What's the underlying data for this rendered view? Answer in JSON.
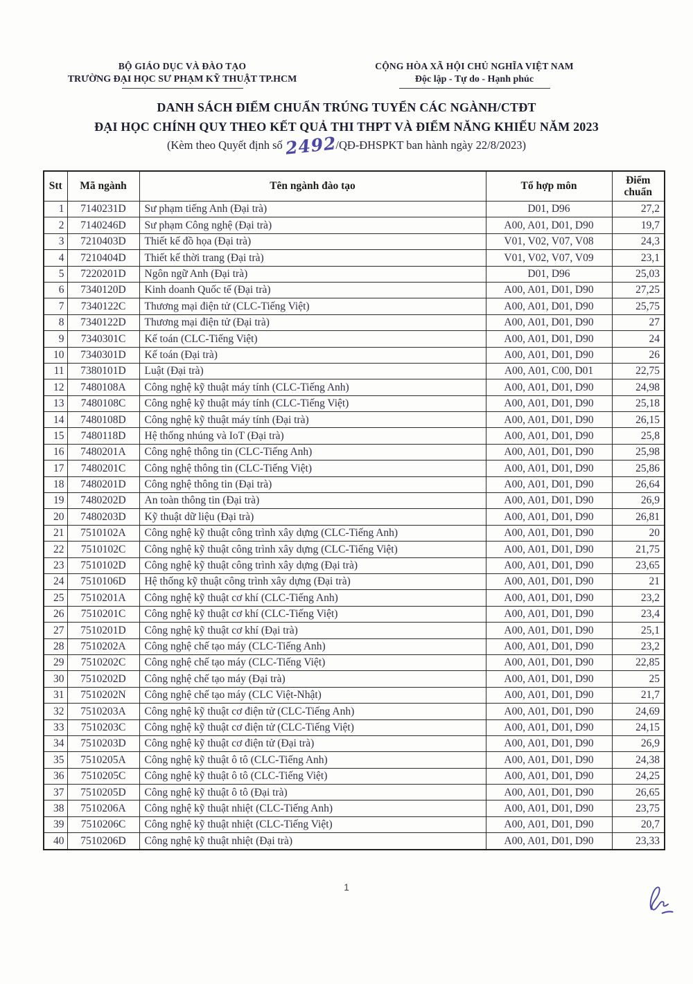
{
  "colors": {
    "handwriting_ink": "#4945ab",
    "body_text": "#2e2e48",
    "heading_text": "#1c1c30"
  },
  "header": {
    "left": {
      "line1": "BỘ GIÁO DỤC VÀ ĐÀO TẠO",
      "line2": "TRƯỜNG ĐẠI HỌC SƯ PHẠM KỸ THUẬT TP.HCM"
    },
    "right": {
      "line1": "CỘNG HÒA XÃ HỘI CHỦ NGHĨA VIỆT NAM",
      "line2": "Độc lập - Tự do - Hạnh phúc"
    }
  },
  "title": {
    "line1": "DANH SÁCH ĐIỂM CHUẨN TRÚNG TUYỂN CÁC NGÀNH/CTĐT",
    "line2": "ĐẠI HỌC CHÍNH QUY THEO KẾT QUẢ THI THPT VÀ ĐIỂM NĂNG KHIẾU NĂM 2023",
    "subtitle_prefix": "(Kèm theo Quyết định số",
    "decision_number_handwritten": "2492",
    "subtitle_suffix": "/QĐ-ĐHSPKT ban hành ngày 22/8/2023)"
  },
  "table": {
    "columns": [
      "Stt",
      "Mã ngành",
      "Tên ngành đào tạo",
      "Tổ hợp môn",
      "Điểm chuẩn"
    ],
    "rows": [
      [
        "1",
        "7140231D",
        "Sư phạm tiếng Anh (Đại trà)",
        "D01, D96",
        "27,2"
      ],
      [
        "2",
        "7140246D",
        "Sư phạm Công nghệ (Đại trà)",
        "A00, A01, D01, D90",
        "19,7"
      ],
      [
        "3",
        "7210403D",
        "Thiết kế đồ họa (Đại trà)",
        "V01, V02, V07, V08",
        "24,3"
      ],
      [
        "4",
        "7210404D",
        "Thiết kế thời trang (Đại trà)",
        "V01, V02, V07, V09",
        "23,1"
      ],
      [
        "5",
        "7220201D",
        "Ngôn ngữ Anh (Đại trà)",
        "D01, D96",
        "25,03"
      ],
      [
        "6",
        "7340120D",
        "Kinh doanh Quốc tế (Đại trà)",
        "A00, A01, D01, D90",
        "27,25"
      ],
      [
        "7",
        "7340122C",
        "Thương mại điện tử (CLC-Tiếng Việt)",
        "A00, A01, D01, D90",
        "25,75"
      ],
      [
        "8",
        "7340122D",
        "Thương mại điện tử (Đại trà)",
        "A00, A01, D01, D90",
        "27"
      ],
      [
        "9",
        "7340301C",
        "Kế toán (CLC-Tiếng Việt)",
        "A00, A01, D01, D90",
        "24"
      ],
      [
        "10",
        "7340301D",
        "Kế toán (Đại trà)",
        "A00, A01, D01, D90",
        "26"
      ],
      [
        "11",
        "7380101D",
        "Luật (Đại trà)",
        "A00, A01, C00, D01",
        "22,75"
      ],
      [
        "12",
        "7480108A",
        "Công nghệ kỹ thuật máy tính (CLC-Tiếng Anh)",
        "A00, A01, D01, D90",
        "24,98"
      ],
      [
        "13",
        "7480108C",
        "Công nghệ kỹ thuật máy tính (CLC-Tiếng Việt)",
        "A00, A01, D01, D90",
        "25,18"
      ],
      [
        "14",
        "7480108D",
        "Công nghệ kỹ thuật máy tính (Đại trà)",
        "A00, A01, D01, D90",
        "26,15"
      ],
      [
        "15",
        "7480118D",
        "Hệ thống nhúng và IoT (Đại trà)",
        "A00, A01, D01, D90",
        "25,8"
      ],
      [
        "16",
        "7480201A",
        "Công nghệ thông tin (CLC-Tiếng Anh)",
        "A00, A01, D01, D90",
        "25,98"
      ],
      [
        "17",
        "7480201C",
        "Công nghệ thông tin (CLC-Tiếng Việt)",
        "A00, A01, D01, D90",
        "25,86"
      ],
      [
        "18",
        "7480201D",
        "Công nghệ thông tin (Đại trà)",
        "A00, A01, D01, D90",
        "26,64"
      ],
      [
        "19",
        "7480202D",
        "An toàn thông tin (Đại trà)",
        "A00, A01, D01, D90",
        "26,9"
      ],
      [
        "20",
        "7480203D",
        "Kỹ thuật dữ liệu (Đại trà)",
        "A00, A01, D01, D90",
        "26,81"
      ],
      [
        "21",
        "7510102A",
        "Công nghệ kỹ thuật công trình xây dựng (CLC-Tiếng Anh)",
        "A00, A01, D01, D90",
        "20"
      ],
      [
        "22",
        "7510102C",
        "Công nghệ kỹ thuật công trình xây dựng (CLC-Tiếng Việt)",
        "A00, A01, D01, D90",
        "21,75"
      ],
      [
        "23",
        "7510102D",
        "Công nghệ kỹ thuật công trình xây dựng (Đại trà)",
        "A00, A01, D01, D90",
        "23,65"
      ],
      [
        "24",
        "7510106D",
        "Hệ thống kỹ thuật công trình xây dựng (Đại trà)",
        "A00, A01, D01, D90",
        "21"
      ],
      [
        "25",
        "7510201A",
        "Công nghệ kỹ thuật cơ khí (CLC-Tiếng Anh)",
        "A00, A01, D01, D90",
        "23,2"
      ],
      [
        "26",
        "7510201C",
        "Công nghệ kỹ thuật cơ khí (CLC-Tiếng Việt)",
        "A00, A01, D01, D90",
        "23,4"
      ],
      [
        "27",
        "7510201D",
        "Công nghệ kỹ thuật cơ khí (Đại trà)",
        "A00, A01, D01, D90",
        "25,1"
      ],
      [
        "28",
        "7510202A",
        "Công nghệ chế tạo máy (CLC-Tiếng Anh)",
        "A00, A01, D01, D90",
        "23,2"
      ],
      [
        "29",
        "7510202C",
        "Công nghệ chế tạo máy (CLC-Tiếng Việt)",
        "A00, A01, D01, D90",
        "22,85"
      ],
      [
        "30",
        "7510202D",
        "Công nghệ chế tạo máy (Đại trà)",
        "A00, A01, D01, D90",
        "25"
      ],
      [
        "31",
        "7510202N",
        "Công nghệ chế tạo máy (CLC Việt-Nhật)",
        "A00, A01, D01, D90",
        "21,7"
      ],
      [
        "32",
        "7510203A",
        "Công nghệ kỹ thuật cơ điện tử (CLC-Tiếng Anh)",
        "A00, A01, D01, D90",
        "24,69"
      ],
      [
        "33",
        "7510203C",
        "Công nghệ kỹ thuật cơ điện tử (CLC-Tiếng Việt)",
        "A00, A01, D01, D90",
        "24,15"
      ],
      [
        "34",
        "7510203D",
        "Công nghệ kỹ thuật cơ điện tử (Đại trà)",
        "A00, A01, D01, D90",
        "26,9"
      ],
      [
        "35",
        "7510205A",
        "Công nghệ kỹ thuật ô tô (CLC-Tiếng Anh)",
        "A00, A01, D01, D90",
        "24,38"
      ],
      [
        "36",
        "7510205C",
        "Công nghệ kỹ thuật ô tô (CLC-Tiếng Việt)",
        "A00, A01, D01, D90",
        "24,25"
      ],
      [
        "37",
        "7510205D",
        "Công nghệ kỹ thuật ô tô (Đại trà)",
        "A00, A01, D01, D90",
        "26,65"
      ],
      [
        "38",
        "7510206A",
        "Công nghệ kỹ thuật nhiệt (CLC-Tiếng Anh)",
        "A00, A01, D01, D90",
        "23,75"
      ],
      [
        "39",
        "7510206C",
        "Công nghệ kỹ thuật nhiệt (CLC-Tiếng Việt)",
        "A00, A01, D01, D90",
        "20,7"
      ],
      [
        "40",
        "7510206D",
        "Công nghệ kỹ thuật nhiệt (Đại trà)",
        "A00, A01, D01, D90",
        "23,33"
      ]
    ]
  },
  "footer": {
    "page_number": "1"
  }
}
